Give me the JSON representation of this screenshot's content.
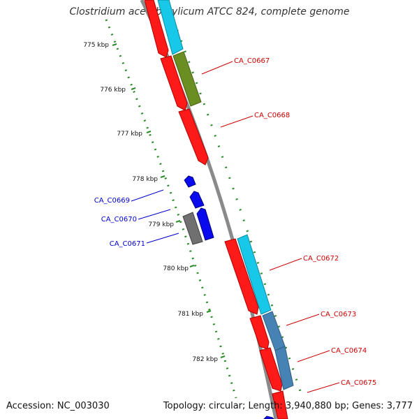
{
  "title": "Clostridium acetobutylicum ATCC 824, complete genome",
  "footer": {
    "accession": "Accession: NC_003030",
    "summary": "Topology: circular; Length: 3,940,880 bp; Genes: 3,777"
  },
  "ticks": [
    "775 kbp",
    "776 kbp",
    "777 kbp",
    "778 kbp",
    "779 kbp",
    "780 kbp",
    "781 kbp",
    "782 kbp"
  ],
  "gene_labels": {
    "forward": [
      "CA_C0667",
      "CA_C0668",
      "CA_C0672",
      "CA_C0673",
      "CA_C0674",
      "CA_C0675"
    ],
    "reverse": [
      "CA_C0669",
      "CA_C0670",
      "CA_C0671"
    ]
  },
  "colors": {
    "forward_label": "#cc0000",
    "reverse_label": "#0000cc",
    "tick": "#2a8a2a",
    "backbone": "#8a8a8a",
    "cds_red": "#ff1a1a",
    "cds_cyan": "#18c8e8",
    "cds_olive": "#6b8e23",
    "cds_blue": "#0a0aee",
    "cds_gray": "#707070",
    "cds_steel": "#4682b4"
  }
}
